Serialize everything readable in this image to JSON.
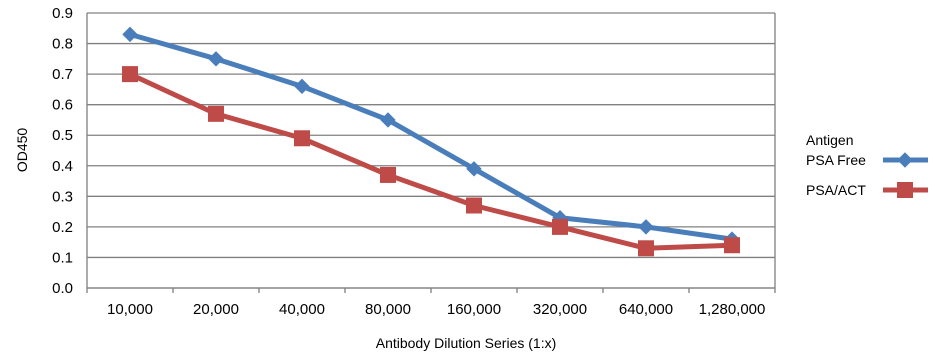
{
  "chart_data": {
    "type": "line",
    "title": "",
    "xlabel": "Antibody Dilution Series (1:x)",
    "ylabel": "OD450",
    "categories": [
      "10,000",
      "20,000",
      "40,000",
      "80,000",
      "160,000",
      "320,000",
      "640,000",
      "1,280,000"
    ],
    "ylim": [
      0,
      0.9
    ],
    "yticks": [
      "0.0",
      "0.1",
      "0.2",
      "0.3",
      "0.4",
      "0.5",
      "0.6",
      "0.7",
      "0.8",
      "0.9"
    ],
    "grid": "horizontal",
    "legend_position": "right",
    "legend_title": "Antigen",
    "series": [
      {
        "name": "PSA Free",
        "color": "#4a7ebb",
        "marker": "diamond",
        "values": [
          0.83,
          0.75,
          0.66,
          0.55,
          0.39,
          0.23,
          0.2,
          0.16
        ]
      },
      {
        "name": "PSA/ACT",
        "color": "#be4b48",
        "marker": "square",
        "values": [
          0.7,
          0.57,
          0.49,
          0.37,
          0.27,
          0.2,
          0.13,
          0.14
        ]
      }
    ]
  }
}
